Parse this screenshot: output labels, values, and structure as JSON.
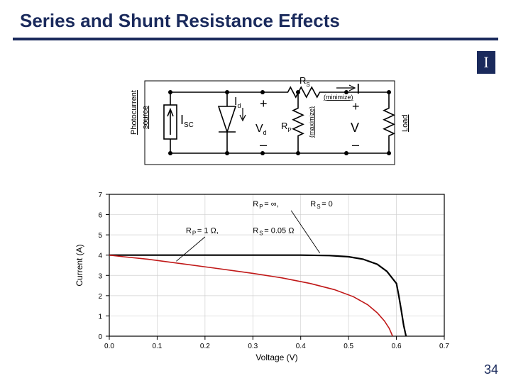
{
  "title": "Series and Shunt Resistance Effects",
  "page_number": "34",
  "logo_letter": "I",
  "colors": {
    "brand": "#1a2a5c",
    "circuit_line": "#000000",
    "note_underline": "#000000",
    "chart_axis": "#000000",
    "chart_grid": "#d0d0d0",
    "ideal_curve": "#000000",
    "parasitic_curve": "#c01818",
    "background": "#ffffff"
  },
  "circuit": {
    "labels": {
      "photocurrent": "Photocurrent",
      "source": "source",
      "isc": "I",
      "isc_sub": "SC",
      "id": "I",
      "id_sub": "d",
      "vd": "V",
      "vd_sub": "d",
      "rs": "R",
      "rs_sub": "S",
      "rp": "R",
      "rp_sub": "P",
      "i_out": "I",
      "v_out": "V",
      "load": "Load",
      "minimize": "(minimize)",
      "maximize": "(maximize)",
      "plus": "+",
      "minus": "–"
    },
    "line_width": 1.6
  },
  "chart": {
    "type": "line",
    "xlabel": "Voltage (V)",
    "ylabel": "Current (A)",
    "label_fontsize": 12,
    "tick_fontsize": 10,
    "xlim": [
      0,
      0.7
    ],
    "ylim": [
      0,
      7
    ],
    "xticks": [
      0,
      0.1,
      0.2,
      0.3,
      0.4,
      0.5,
      0.6,
      0.7
    ],
    "yticks": [
      0,
      1,
      2,
      3,
      4,
      5,
      6,
      7
    ],
    "legend": {
      "ideal": "R_P = ∞,   R_S = 0",
      "parasitic": "R_P = 1 Ω,   R_S = 0.05 Ω"
    },
    "line_width_ideal": 2.2,
    "line_width_parasitic": 1.6,
    "ideal_points": [
      [
        0.0,
        4.0
      ],
      [
        0.1,
        4.0
      ],
      [
        0.2,
        4.0
      ],
      [
        0.3,
        4.0
      ],
      [
        0.4,
        4.0
      ],
      [
        0.46,
        3.98
      ],
      [
        0.5,
        3.92
      ],
      [
        0.53,
        3.8
      ],
      [
        0.56,
        3.55
      ],
      [
        0.58,
        3.2
      ],
      [
        0.6,
        2.6
      ],
      [
        0.605,
        2.0
      ],
      [
        0.61,
        1.3
      ],
      [
        0.615,
        0.55
      ],
      [
        0.62,
        0.0
      ]
    ],
    "parasitic_points": [
      [
        0.0,
        4.0
      ],
      [
        0.03,
        3.92
      ],
      [
        0.08,
        3.8
      ],
      [
        0.15,
        3.58
      ],
      [
        0.22,
        3.36
      ],
      [
        0.3,
        3.1
      ],
      [
        0.36,
        2.88
      ],
      [
        0.42,
        2.6
      ],
      [
        0.47,
        2.3
      ],
      [
        0.51,
        1.95
      ],
      [
        0.54,
        1.55
      ],
      [
        0.56,
        1.15
      ],
      [
        0.575,
        0.75
      ],
      [
        0.585,
        0.38
      ],
      [
        0.592,
        0.0
      ]
    ]
  }
}
